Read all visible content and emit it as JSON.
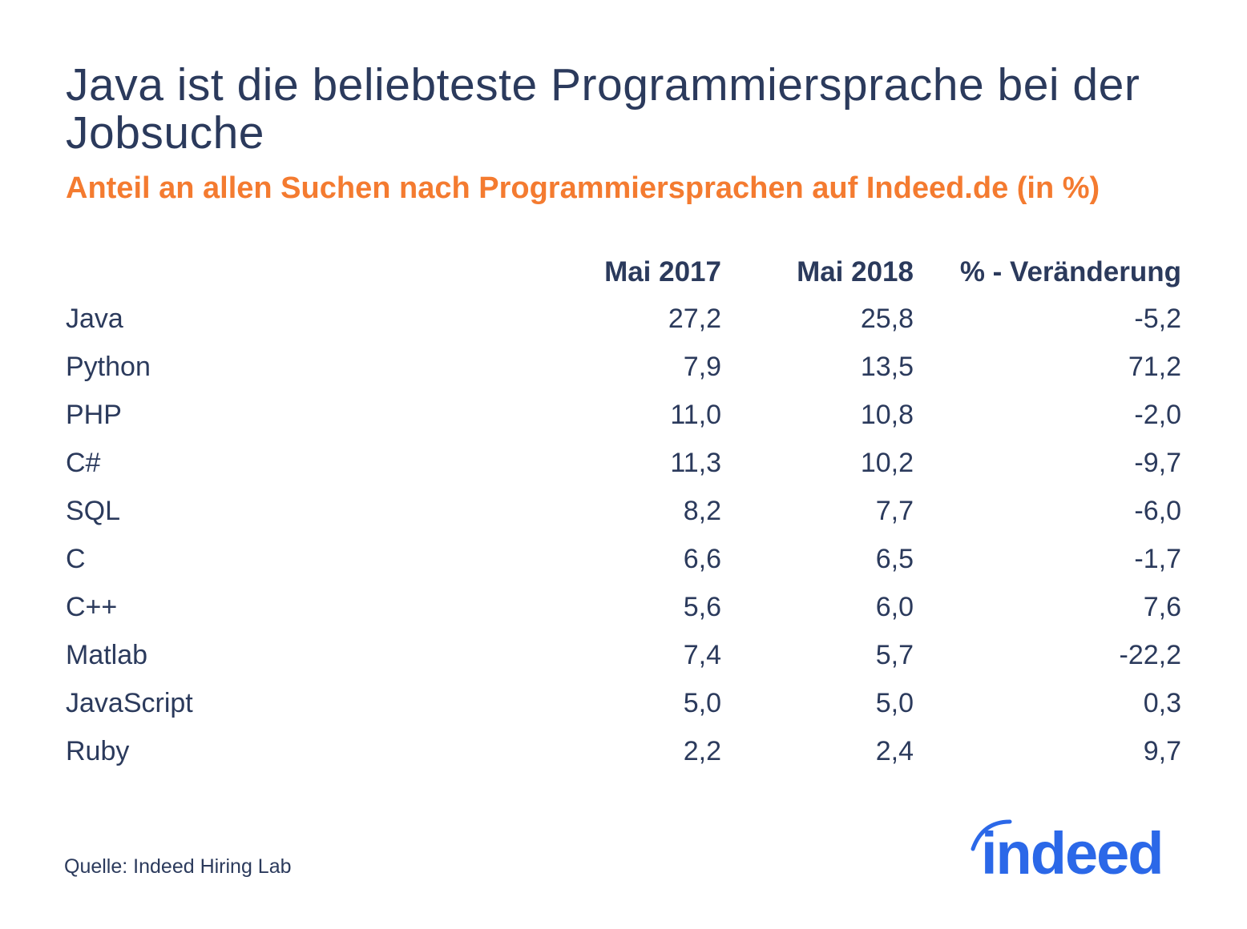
{
  "title": "Java ist die beliebteste Programmiersprache bei der Jobsuche",
  "subtitle": "Anteil an allen Suchen nach Programmiersprachen auf Indeed.de (in %)",
  "table": {
    "headers": [
      "",
      "Mai 2017",
      "Mai 2018",
      "% - Veränderung"
    ],
    "rows": [
      {
        "lang": "Java",
        "y2017": "27,2",
        "y2018": "25,8",
        "change": "-5,2"
      },
      {
        "lang": "Python",
        "y2017": "7,9",
        "y2018": "13,5",
        "change": "71,2"
      },
      {
        "lang": "PHP",
        "y2017": "11,0",
        "y2018": "10,8",
        "change": "-2,0"
      },
      {
        "lang": "C#",
        "y2017": "11,3",
        "y2018": "10,2",
        "change": "-9,7"
      },
      {
        "lang": "SQL",
        "y2017": "8,2",
        "y2018": "7,7",
        "change": "-6,0"
      },
      {
        "lang": "C",
        "y2017": "6,6",
        "y2018": "6,5",
        "change": "-1,7"
      },
      {
        "lang": "C++",
        "y2017": "5,6",
        "y2018": "6,0",
        "change": "7,6"
      },
      {
        "lang": "Matlab",
        "y2017": "7,4",
        "y2018": "5,7",
        "change": "-22,2"
      },
      {
        "lang": "JavaScript",
        "y2017": "5,0",
        "y2018": "5,0",
        "change": "0,3"
      },
      {
        "lang": "Ruby",
        "y2017": "2,2",
        "y2018": "2,4",
        "change": "9,7"
      }
    ]
  },
  "source": "Quelle: Indeed Hiring Lab",
  "logo": {
    "text": "indeed",
    "color": "#2b68e8"
  },
  "colors": {
    "title": "#2b3a5c",
    "subtitle": "#f47b30"
  }
}
